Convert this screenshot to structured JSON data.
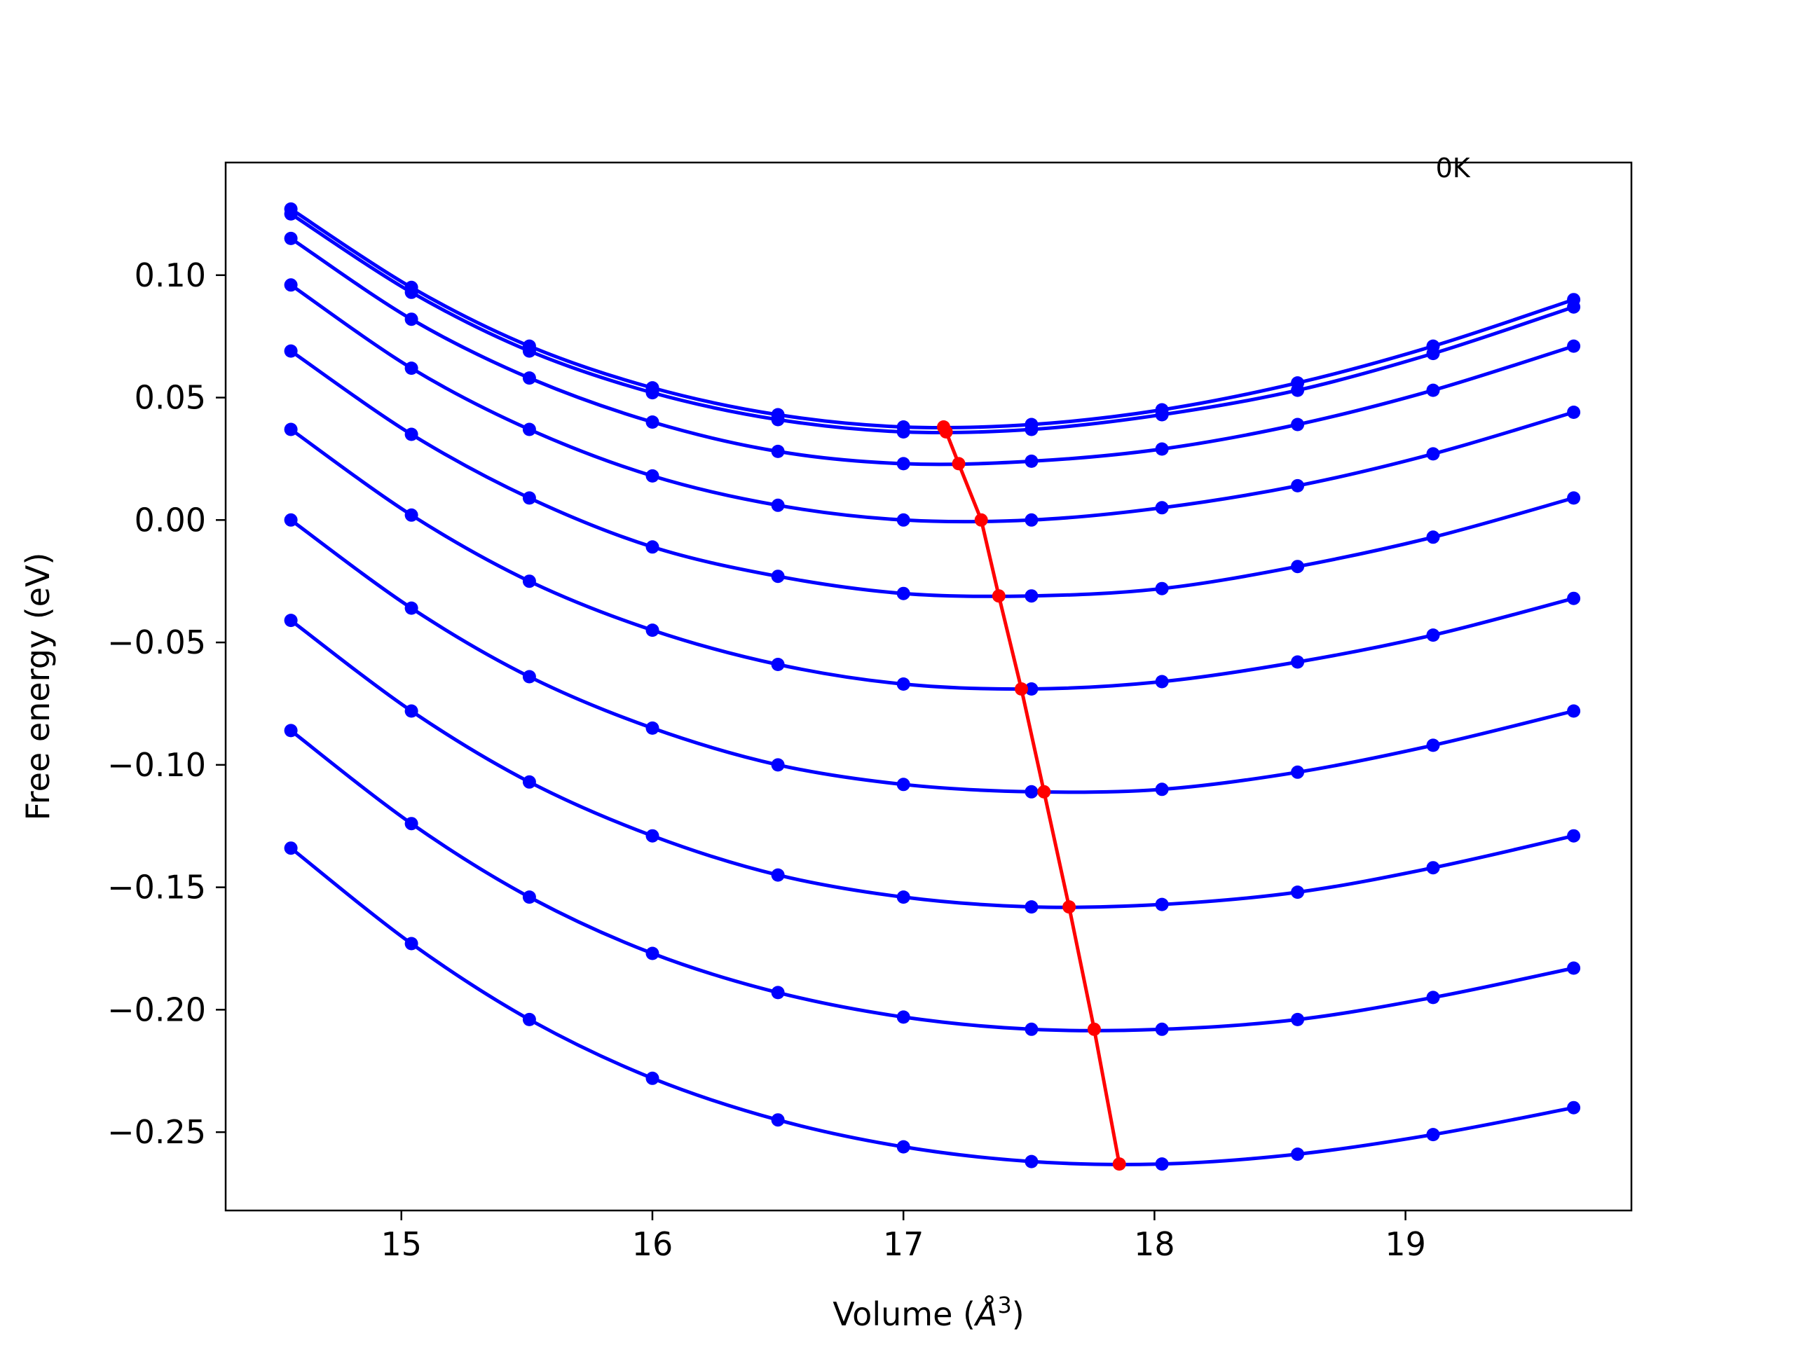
{
  "chart_data": {
    "type": "line",
    "title": "",
    "xlabel": "Volume (",
    "xlabel_symbol": "Å",
    "xlabel_sup": "3",
    "xlabel_close": ")",
    "ylabel": "Free energy (eV)",
    "xlim": [
      14.3,
      19.9
    ],
    "ylim": [
      -0.282,
      0.146
    ],
    "xticks": [
      15,
      16,
      17,
      18,
      19
    ],
    "xtick_labels": [
      "15",
      "16",
      "17",
      "18",
      "19"
    ],
    "yticks": [
      0.1,
      0.05,
      0.0,
      -0.05,
      -0.1,
      -0.15,
      -0.2,
      -0.25
    ],
    "ytick_labels": [
      "0.10",
      "0.05",
      "0.00",
      "−0.05",
      "−0.10",
      "−0.15",
      "−0.20",
      "−0.25"
    ],
    "annotation": "0K",
    "annotation_pos": [
      19.12,
      0.144
    ],
    "grid": false,
    "colors": {
      "curves": "#0000ff",
      "minima": "#ff0000"
    },
    "x": [
      14.56,
      15.04,
      15.51,
      16.0,
      16.5,
      17.0,
      17.51,
      18.03,
      18.57,
      19.11,
      19.67
    ],
    "series": [
      {
        "values": [
          0.127,
          0.095,
          0.071,
          0.054,
          0.043,
          0.038,
          0.039,
          0.045,
          0.056,
          0.071,
          0.09
        ]
      },
      {
        "values": [
          0.125,
          0.093,
          0.069,
          0.052,
          0.041,
          0.036,
          0.037,
          0.043,
          0.053,
          0.068,
          0.087
        ]
      },
      {
        "values": [
          0.115,
          0.082,
          0.058,
          0.04,
          0.028,
          0.023,
          0.024,
          0.029,
          0.039,
          0.053,
          0.071
        ]
      },
      {
        "values": [
          0.096,
          0.062,
          0.037,
          0.018,
          0.006,
          0.0,
          0.0,
          0.005,
          0.014,
          0.027,
          0.044
        ]
      },
      {
        "values": [
          0.069,
          0.035,
          0.009,
          -0.011,
          -0.023,
          -0.03,
          -0.031,
          -0.028,
          -0.019,
          -0.007,
          0.009
        ]
      },
      {
        "values": [
          0.037,
          0.002,
          -0.025,
          -0.045,
          -0.059,
          -0.067,
          -0.069,
          -0.066,
          -0.058,
          -0.047,
          -0.032
        ]
      },
      {
        "values": [
          0.0,
          -0.036,
          -0.064,
          -0.085,
          -0.1,
          -0.108,
          -0.111,
          -0.11,
          -0.103,
          -0.092,
          -0.078
        ]
      },
      {
        "values": [
          -0.041,
          -0.078,
          -0.107,
          -0.129,
          -0.145,
          -0.154,
          -0.158,
          -0.157,
          -0.152,
          -0.142,
          -0.129
        ]
      },
      {
        "values": [
          -0.086,
          -0.124,
          -0.154,
          -0.177,
          -0.193,
          -0.203,
          -0.208,
          -0.208,
          -0.204,
          -0.195,
          -0.183
        ]
      },
      {
        "values": [
          -0.134,
          -0.173,
          -0.204,
          -0.228,
          -0.245,
          -0.256,
          -0.262,
          -0.263,
          -0.259,
          -0.251,
          -0.24
        ]
      }
    ],
    "minima": {
      "x": [
        17.16,
        17.17,
        17.22,
        17.31,
        17.38,
        17.47,
        17.56,
        17.66,
        17.76,
        17.86
      ],
      "y": [
        0.038,
        0.036,
        0.023,
        0.0,
        -0.031,
        -0.069,
        -0.111,
        -0.158,
        -0.208,
        -0.263
      ]
    }
  }
}
